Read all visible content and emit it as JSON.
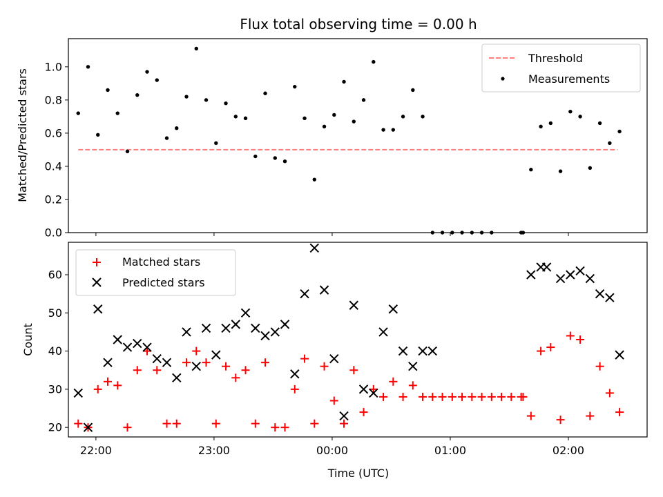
{
  "chart_data": [
    {
      "type": "scatter",
      "title": "Flux total observing time = 0.00 h",
      "xlabel": "",
      "ylabel": "Matched/Predicted stars",
      "ylim": [
        0,
        1.17
      ],
      "yticks": [
        0.0,
        0.2,
        0.4,
        0.6,
        0.8,
        1.0
      ],
      "ytick_labels": [
        "0.0",
        "0.2",
        "0.4",
        "0.6",
        "0.8",
        "1.0"
      ],
      "xlim": [
        "21:46",
        "02:40"
      ],
      "legend_position": "top-right",
      "series": [
        {
          "name": "Threshold",
          "kind": "dashed-line",
          "color": "#ff7f7f",
          "x": [
            "21:51",
            "02:25"
          ],
          "y": [
            0.5,
            0.5
          ]
        },
        {
          "name": "Measurements",
          "kind": "points",
          "color": "#000000",
          "x": [
            "21:51",
            "21:56",
            "22:01",
            "22:06",
            "22:11",
            "22:16",
            "22:21",
            "22:26",
            "22:31",
            "22:36",
            "22:41",
            "22:46",
            "22:51",
            "22:56",
            "23:01",
            "23:06",
            "23:11",
            "23:16",
            "23:21",
            "23:26",
            "23:31",
            "23:36",
            "23:41",
            "23:46",
            "23:51",
            "23:56",
            "00:01",
            "00:06",
            "00:11",
            "00:16",
            "00:21",
            "00:26",
            "00:31",
            "00:36",
            "00:41",
            "00:46",
            "00:51",
            "00:56",
            "01:01",
            "01:06",
            "01:11",
            "01:16",
            "01:21",
            "01:36",
            "01:37",
            "01:41",
            "01:46",
            "01:51",
            "01:56",
            "02:01",
            "02:06",
            "02:11",
            "02:16",
            "02:21",
            "02:26"
          ],
          "y": [
            0.72,
            1.0,
            0.59,
            0.86,
            0.72,
            0.49,
            0.83,
            0.97,
            0.92,
            0.57,
            0.63,
            0.82,
            1.11,
            0.8,
            0.54,
            0.78,
            0.7,
            0.69,
            0.46,
            0.84,
            0.45,
            0.43,
            0.88,
            0.69,
            0.32,
            0.64,
            0.71,
            0.91,
            0.67,
            0.8,
            1.03,
            0.62,
            0.62,
            0.7,
            0.86,
            0.7,
            0.0,
            0.0,
            0.0,
            0.0,
            0.0,
            0.0,
            0.0,
            0.0,
            0.0,
            0.38,
            0.64,
            0.66,
            0.37,
            0.73,
            0.7,
            0.39,
            0.66,
            0.54,
            0.61
          ]
        }
      ]
    },
    {
      "type": "scatter",
      "title": "",
      "xlabel": "Time (UTC)",
      "ylabel": "Count",
      "ylim": [
        17.5,
        68.5
      ],
      "yticks": [
        20,
        30,
        40,
        50,
        60
      ],
      "ytick_labels": [
        "20",
        "30",
        "40",
        "50",
        "60"
      ],
      "xlim": [
        "21:46",
        "02:40"
      ],
      "xticks": [
        "22:00",
        "23:00",
        "00:00",
        "01:00",
        "02:00"
      ],
      "legend_position": "top-left",
      "series": [
        {
          "name": "Matched stars",
          "marker": "plus",
          "color": "#ff0000",
          "x": [
            "21:51",
            "21:56",
            "22:01",
            "22:06",
            "22:11",
            "22:16",
            "22:21",
            "22:26",
            "22:31",
            "22:36",
            "22:41",
            "22:46",
            "22:51",
            "22:56",
            "23:01",
            "23:06",
            "23:11",
            "23:16",
            "23:21",
            "23:26",
            "23:31",
            "23:36",
            "23:41",
            "23:46",
            "23:51",
            "23:56",
            "00:01",
            "00:06",
            "00:11",
            "00:16",
            "00:21",
            "00:26",
            "00:31",
            "00:36",
            "00:41",
            "00:46",
            "00:51",
            "00:56",
            "01:01",
            "01:06",
            "01:11",
            "01:16",
            "01:21",
            "01:26",
            "01:31",
            "01:36",
            "01:37",
            "01:41",
            "01:46",
            "01:51",
            "01:56",
            "02:01",
            "02:06",
            "02:11",
            "02:16",
            "02:21",
            "02:26"
          ],
          "y": [
            21,
            20,
            30,
            32,
            31,
            20,
            35,
            40,
            35,
            21,
            21,
            37,
            40,
            37,
            21,
            36,
            33,
            35,
            21,
            37,
            20,
            20,
            30,
            38,
            21,
            36,
            27,
            21,
            35,
            24,
            30,
            28,
            32,
            28,
            31,
            28,
            28,
            28,
            28,
            28,
            28,
            28,
            28,
            28,
            28,
            28,
            28,
            23,
            40,
            41,
            22,
            44,
            43,
            23,
            36,
            29,
            24
          ]
        },
        {
          "name": "Predicted stars",
          "marker": "x",
          "color": "#000000",
          "x": [
            "21:51",
            "21:56",
            "22:01",
            "22:06",
            "22:11",
            "22:16",
            "22:21",
            "22:26",
            "22:31",
            "22:36",
            "22:41",
            "22:46",
            "22:51",
            "22:56",
            "23:01",
            "23:06",
            "23:11",
            "23:16",
            "23:21",
            "23:26",
            "23:31",
            "23:36",
            "23:41",
            "23:46",
            "23:51",
            "23:56",
            "00:01",
            "00:06",
            "00:11",
            "00:16",
            "00:21",
            "00:26",
            "00:31",
            "00:36",
            "00:41",
            "00:46",
            "00:51",
            "01:41",
            "01:46",
            "01:49",
            "01:56",
            "02:01",
            "02:06",
            "02:11",
            "02:16",
            "02:21",
            "02:26"
          ],
          "y": [
            29,
            20,
            51,
            37,
            43,
            41,
            42,
            41,
            38,
            37,
            33,
            45,
            36,
            46,
            39,
            46,
            47,
            50,
            46,
            44,
            45,
            47,
            34,
            55,
            67,
            56,
            38,
            23,
            52,
            30,
            29,
            45,
            51,
            40,
            36,
            40,
            40,
            60,
            62,
            62,
            59,
            60,
            61,
            59,
            55,
            54,
            39
          ]
        }
      ]
    }
  ]
}
